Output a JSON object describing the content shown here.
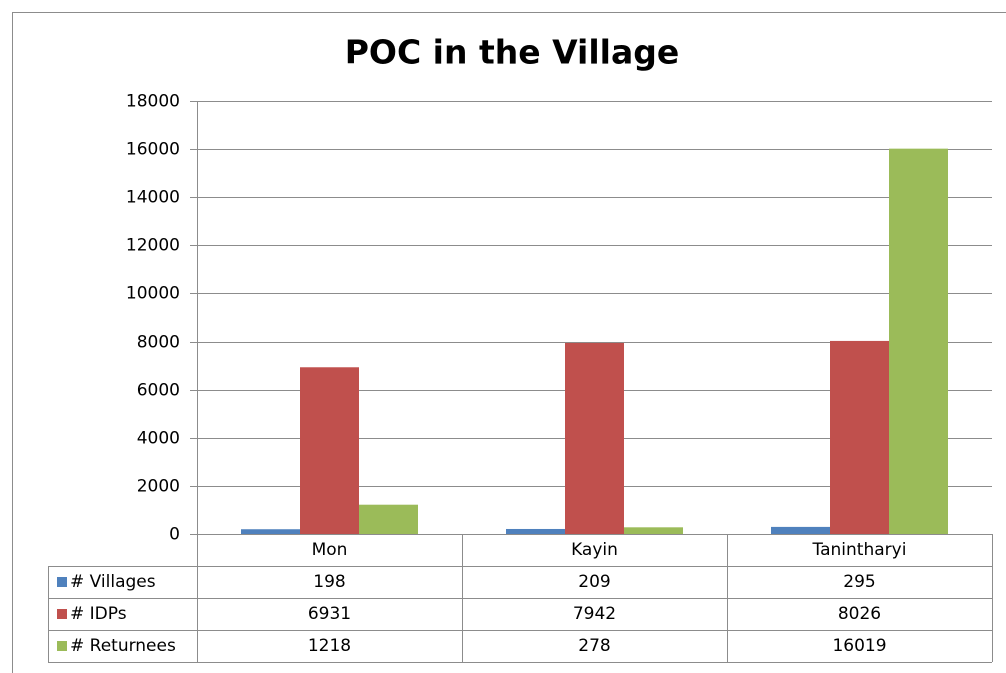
{
  "chart_data": {
    "type": "bar",
    "title": "POC in the Village",
    "categories": [
      "Mon",
      "Kayin",
      "Tanintharyi"
    ],
    "series": [
      {
        "name": "# Villages",
        "color": "#4f81bd",
        "values": [
          198,
          209,
          295
        ]
      },
      {
        "name": "# IDPs",
        "color": "#c0504d",
        "values": [
          6931,
          7942,
          8026
        ]
      },
      {
        "name": "# Returnees",
        "color": "#9bbb59",
        "values": [
          1218,
          278,
          16019
        ]
      }
    ],
    "ylim": [
      0,
      18000
    ],
    "yticks": [
      0,
      2000,
      4000,
      6000,
      8000,
      10000,
      12000,
      14000,
      16000,
      18000
    ],
    "grid": true
  }
}
